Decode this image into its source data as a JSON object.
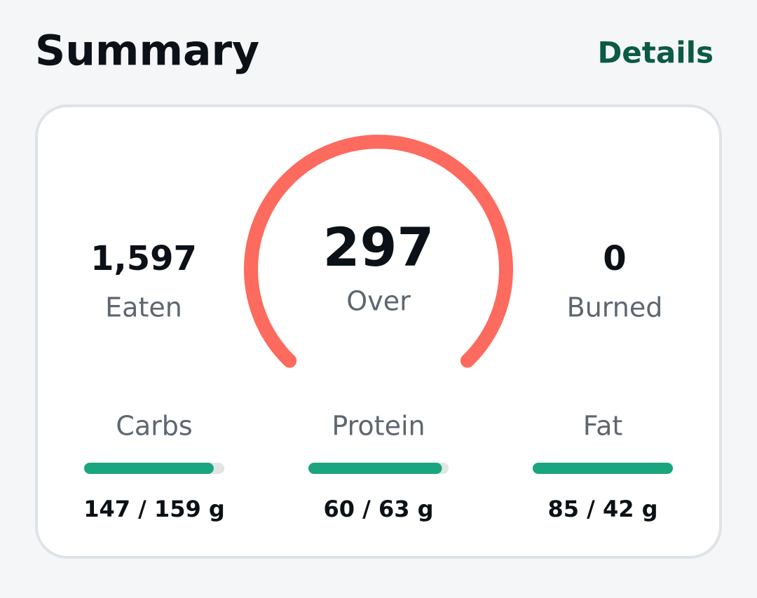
{
  "header": {
    "title": "Summary",
    "link": "Details"
  },
  "summary": {
    "eaten": {
      "value": "1,597",
      "label": "Eaten"
    },
    "remaining": {
      "value": "297",
      "label": "Over"
    },
    "burned": {
      "value": "0",
      "label": "Burned"
    }
  },
  "macros": [
    {
      "name": "Carbs",
      "amount": 147,
      "goal": 159,
      "text": "147 / 159 g"
    },
    {
      "name": "Protein",
      "amount": 60,
      "goal": 63,
      "text": "60 / 63 g"
    },
    {
      "name": "Fat",
      "amount": 85,
      "goal": 42,
      "text": "85 / 42 g"
    }
  ]
}
